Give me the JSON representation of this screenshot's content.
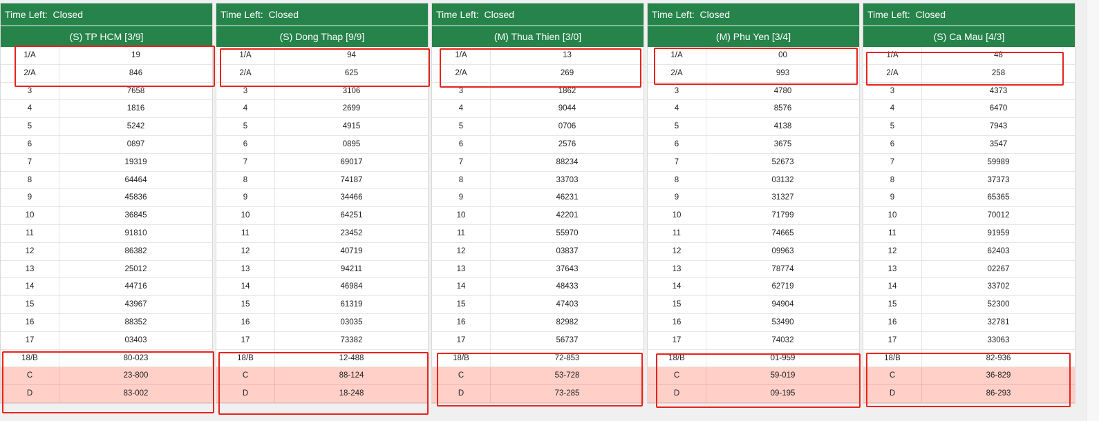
{
  "time_left_label": "Time Left:",
  "panels": [
    {
      "status": "Closed",
      "title": "(S) TP HCM [3/9]",
      "rows": [
        {
          "code": "1/A",
          "value": "19"
        },
        {
          "code": "2/A",
          "value": "846"
        },
        {
          "code": "3",
          "value": "7658"
        },
        {
          "code": "4",
          "value": "1816"
        },
        {
          "code": "5",
          "value": "5242"
        },
        {
          "code": "6",
          "value": "0897"
        },
        {
          "code": "7",
          "value": "19319"
        },
        {
          "code": "8",
          "value": "64464"
        },
        {
          "code": "9",
          "value": "45836"
        },
        {
          "code": "10",
          "value": "36845"
        },
        {
          "code": "11",
          "value": "91810"
        },
        {
          "code": "12",
          "value": "86382"
        },
        {
          "code": "13",
          "value": "25012"
        },
        {
          "code": "14",
          "value": "44716"
        },
        {
          "code": "15",
          "value": "43967"
        },
        {
          "code": "16",
          "value": "88352"
        },
        {
          "code": "17",
          "value": "03403"
        },
        {
          "code": "18/B",
          "value": "80-023"
        },
        {
          "code": "C",
          "value": "23-800"
        },
        {
          "code": "D",
          "value": "83-002"
        }
      ]
    },
    {
      "status": "Closed",
      "title": "(S) Dong Thap [9/9]",
      "rows": [
        {
          "code": "1/A",
          "value": "94"
        },
        {
          "code": "2/A",
          "value": "625"
        },
        {
          "code": "3",
          "value": "3106"
        },
        {
          "code": "4",
          "value": "2699"
        },
        {
          "code": "5",
          "value": "4915"
        },
        {
          "code": "6",
          "value": "0895"
        },
        {
          "code": "7",
          "value": "69017"
        },
        {
          "code": "8",
          "value": "74187"
        },
        {
          "code": "9",
          "value": "34466"
        },
        {
          "code": "10",
          "value": "64251"
        },
        {
          "code": "11",
          "value": "23452"
        },
        {
          "code": "12",
          "value": "40719"
        },
        {
          "code": "13",
          "value": "94211"
        },
        {
          "code": "14",
          "value": "46984"
        },
        {
          "code": "15",
          "value": "61319"
        },
        {
          "code": "16",
          "value": "03035"
        },
        {
          "code": "17",
          "value": "73382"
        },
        {
          "code": "18/B",
          "value": "12-488"
        },
        {
          "code": "C",
          "value": "88-124"
        },
        {
          "code": "D",
          "value": "18-248"
        }
      ]
    },
    {
      "status": "Closed",
      "title": "(M) Thua Thien [3/0]",
      "rows": [
        {
          "code": "1/A",
          "value": "13"
        },
        {
          "code": "2/A",
          "value": "269"
        },
        {
          "code": "3",
          "value": "1862"
        },
        {
          "code": "4",
          "value": "9044"
        },
        {
          "code": "5",
          "value": "0706"
        },
        {
          "code": "6",
          "value": "2576"
        },
        {
          "code": "7",
          "value": "88234"
        },
        {
          "code": "8",
          "value": "33703"
        },
        {
          "code": "9",
          "value": "46231"
        },
        {
          "code": "10",
          "value": "42201"
        },
        {
          "code": "11",
          "value": "55970"
        },
        {
          "code": "12",
          "value": "03837"
        },
        {
          "code": "13",
          "value": "37643"
        },
        {
          "code": "14",
          "value": "48433"
        },
        {
          "code": "15",
          "value": "47403"
        },
        {
          "code": "16",
          "value": "82982"
        },
        {
          "code": "17",
          "value": "56737"
        },
        {
          "code": "18/B",
          "value": "72-853"
        },
        {
          "code": "C",
          "value": "53-728"
        },
        {
          "code": "D",
          "value": "73-285"
        }
      ]
    },
    {
      "status": "Closed",
      "title": "(M) Phu Yen [3/4]",
      "rows": [
        {
          "code": "1/A",
          "value": "00"
        },
        {
          "code": "2/A",
          "value": "993"
        },
        {
          "code": "3",
          "value": "4780"
        },
        {
          "code": "4",
          "value": "8576"
        },
        {
          "code": "5",
          "value": "4138"
        },
        {
          "code": "6",
          "value": "3675"
        },
        {
          "code": "7",
          "value": "52673"
        },
        {
          "code": "8",
          "value": "03132"
        },
        {
          "code": "9",
          "value": "31327"
        },
        {
          "code": "10",
          "value": "71799"
        },
        {
          "code": "11",
          "value": "74665"
        },
        {
          "code": "12",
          "value": "09963"
        },
        {
          "code": "13",
          "value": "78774"
        },
        {
          "code": "14",
          "value": "62719"
        },
        {
          "code": "15",
          "value": "94904"
        },
        {
          "code": "16",
          "value": "53490"
        },
        {
          "code": "17",
          "value": "74032"
        },
        {
          "code": "18/B",
          "value": "01-959"
        },
        {
          "code": "C",
          "value": "59-019"
        },
        {
          "code": "D",
          "value": "09-195"
        }
      ]
    },
    {
      "status": "Closed",
      "title": "(S) Ca Mau [4/3]",
      "rows": [
        {
          "code": "1/A",
          "value": "48"
        },
        {
          "code": "2/A",
          "value": "258"
        },
        {
          "code": "3",
          "value": "4373"
        },
        {
          "code": "4",
          "value": "6470"
        },
        {
          "code": "5",
          "value": "7943"
        },
        {
          "code": "6",
          "value": "3547"
        },
        {
          "code": "7",
          "value": "59989"
        },
        {
          "code": "8",
          "value": "37373"
        },
        {
          "code": "9",
          "value": "65365"
        },
        {
          "code": "10",
          "value": "70012"
        },
        {
          "code": "11",
          "value": "91959"
        },
        {
          "code": "12",
          "value": "62403"
        },
        {
          "code": "13",
          "value": "02267"
        },
        {
          "code": "14",
          "value": "33702"
        },
        {
          "code": "15",
          "value": "52300"
        },
        {
          "code": "16",
          "value": "32781"
        },
        {
          "code": "17",
          "value": "33063"
        },
        {
          "code": "18/B",
          "value": "82-936"
        },
        {
          "code": "C",
          "value": "36-829"
        },
        {
          "code": "D",
          "value": "86-293"
        }
      ]
    }
  ],
  "colors": {
    "header_green": "#26834a",
    "highlight_pink": "#ffd0c8",
    "annotation_red": "#e8221b"
  }
}
